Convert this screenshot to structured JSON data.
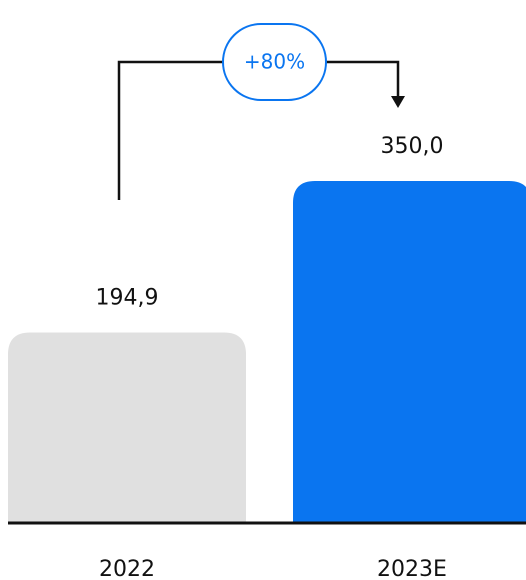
{
  "chart_data": {
    "type": "bar",
    "categories": [
      "2022",
      "2023E"
    ],
    "values": [
      194.9,
      350.0
    ],
    "value_labels": [
      "194,9",
      "350,0"
    ],
    "bar_colors": [
      "#e0e0e0",
      "#0a75f0"
    ],
    "growth_label": "+80%",
    "growth_color": "#0a75f0",
    "baseline_color": "#111111",
    "grid": false,
    "legend": "none"
  }
}
